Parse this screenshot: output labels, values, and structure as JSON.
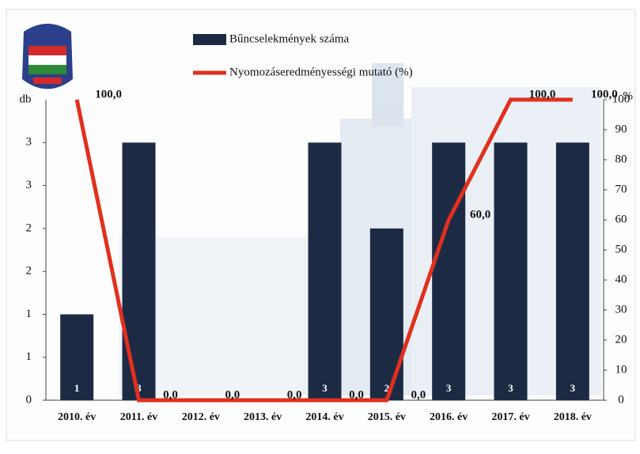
{
  "chart_data": {
    "type": "bar-line",
    "categories": [
      "2010. év",
      "2011. év",
      "2012. év",
      "2013. év",
      "2014. év",
      "2015. év",
      "2016. év",
      "2017. év",
      "2018. év"
    ],
    "series": [
      {
        "name": "Bűncselekmények száma",
        "type": "bar",
        "color": "#1c2a44",
        "values": [
          1,
          3,
          null,
          null,
          3,
          2,
          3,
          3,
          3
        ]
      },
      {
        "name": "Nyomozáseredményességi mutató (%)",
        "type": "line",
        "axis": "y2",
        "color": "#e0301e",
        "values": [
          100,
          0,
          0,
          0,
          0,
          0,
          60,
          100,
          100
        ],
        "value_labels": [
          "100,0",
          "0,0",
          "0,0",
          "0,0",
          "0,0",
          "0,0",
          "60,0",
          "100,0",
          "100,0"
        ]
      }
    ],
    "ylabel": "db",
    "y2label": "%",
    "ylim": [
      0,
      3.5
    ],
    "yticks": [
      0,
      {
        "value": 0.5,
        "label": "1"
      },
      1,
      {
        "value": 1.5,
        "label": "2"
      },
      2,
      {
        "value": 2.5,
        "label": "3"
      },
      3
    ],
    "y2lim": [
      0,
      100
    ],
    "y2ticks": [
      0,
      10,
      20,
      30,
      40,
      50,
      60,
      70,
      80,
      90,
      100
    ]
  }
}
